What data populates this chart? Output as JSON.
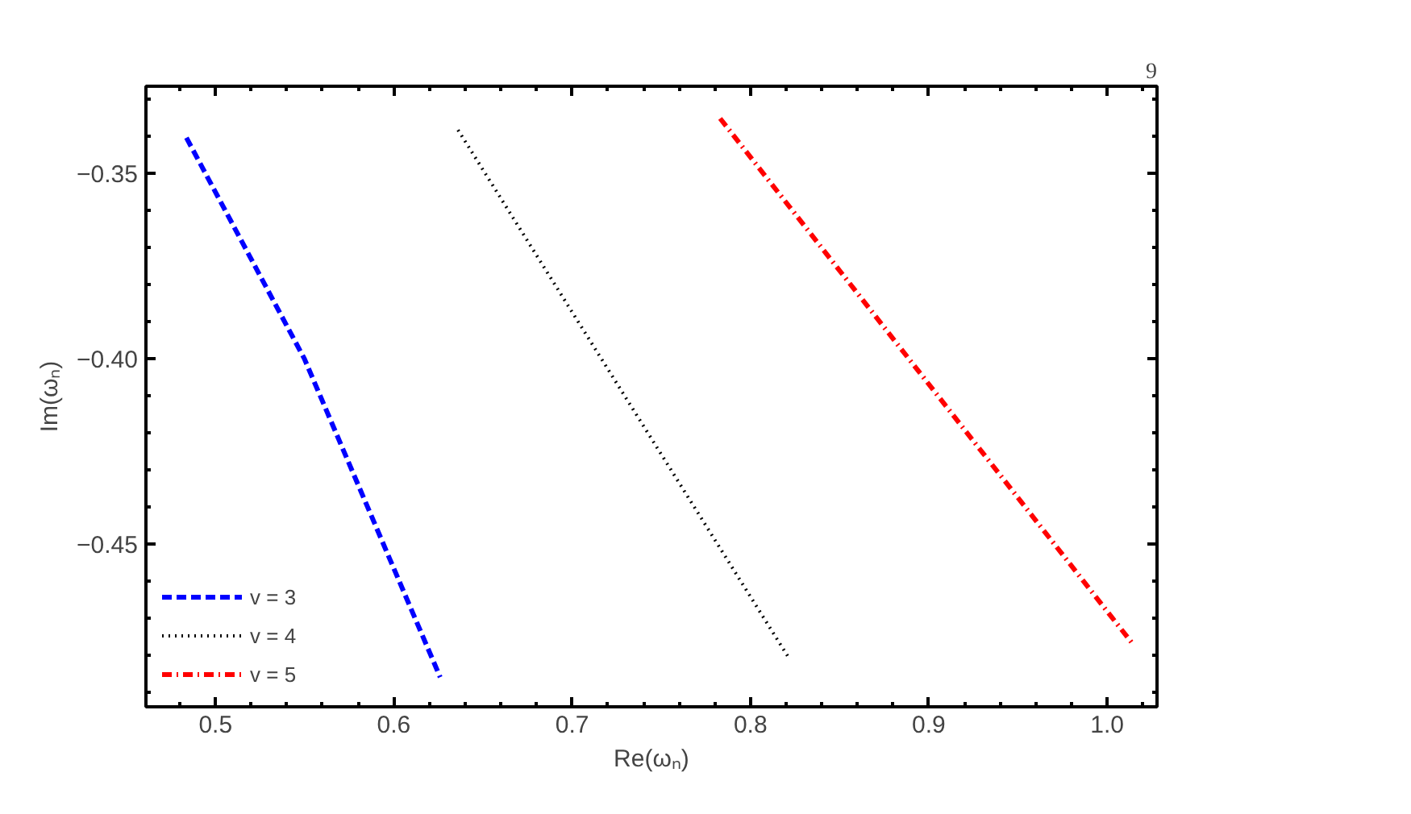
{
  "chart_data": {
    "type": "line",
    "xlabel": "Re(ωₙ)",
    "ylabel": "Im(ωₙ)",
    "annotations": [
      "9"
    ],
    "xlim": [
      0.461,
      1.028
    ],
    "ylim": [
      -0.494,
      -0.3265
    ],
    "xticks": [
      0.5,
      0.6,
      0.7,
      0.8,
      0.9,
      {
        "value": 1.0,
        "label": "1.0"
      }
    ],
    "yticks": [
      {
        "value": -0.35,
        "label": "−0.35"
      },
      {
        "value": -0.4,
        "label": "−0.40"
      },
      {
        "value": -0.45,
        "label": "−0.45"
      }
    ],
    "grid": false,
    "legend": "bottom left",
    "marker": "none",
    "series": [
      {
        "name": "v = 3",
        "color": "#0000ff",
        "line_style": "dashed",
        "x": [
          0.4837,
          0.5498,
          0.626
        ],
        "values": [
          -0.3404,
          -0.4,
          -0.486
        ]
      },
      {
        "name": "v = 4",
        "color": "#000000",
        "line_style": "dotted",
        "x": [
          0.636,
          0.821
        ],
        "values": [
          -0.3383,
          -0.4804
        ]
      },
      {
        "name": "v = 5",
        "color": "#ff0000",
        "line_style": "dashdot",
        "x": [
          0.783,
          1.015
        ],
        "values": [
          -0.3352,
          -0.4774
        ]
      }
    ]
  }
}
